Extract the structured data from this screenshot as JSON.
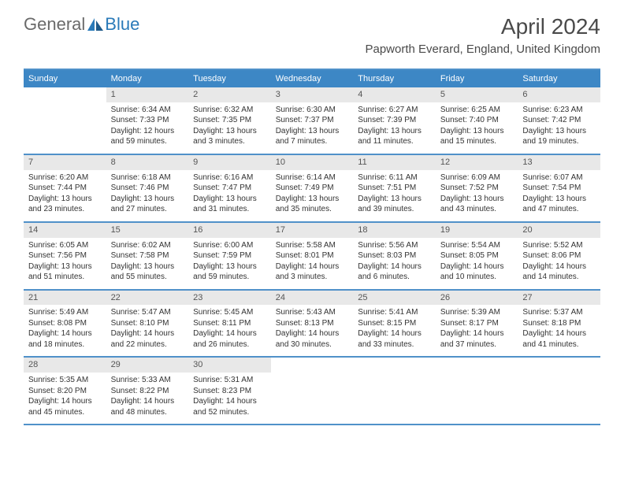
{
  "logo": {
    "text1": "General",
    "text2": "Blue"
  },
  "title": "April 2024",
  "location": "Papworth Everard, England, United Kingdom",
  "colors": {
    "header_bg": "#3d87c5",
    "header_border": "#5091c9",
    "daynum_bg": "#e8e8e8",
    "text": "#333333",
    "logo_gray": "#6a6a6a",
    "logo_blue": "#2a7ab9"
  },
  "day_names": [
    "Sunday",
    "Monday",
    "Tuesday",
    "Wednesday",
    "Thursday",
    "Friday",
    "Saturday"
  ],
  "weeks": [
    [
      {
        "n": "",
        "s": "",
        "t": "",
        "d": ""
      },
      {
        "n": "1",
        "s": "Sunrise: 6:34 AM",
        "t": "Sunset: 7:33 PM",
        "d": "Daylight: 12 hours and 59 minutes."
      },
      {
        "n": "2",
        "s": "Sunrise: 6:32 AM",
        "t": "Sunset: 7:35 PM",
        "d": "Daylight: 13 hours and 3 minutes."
      },
      {
        "n": "3",
        "s": "Sunrise: 6:30 AM",
        "t": "Sunset: 7:37 PM",
        "d": "Daylight: 13 hours and 7 minutes."
      },
      {
        "n": "4",
        "s": "Sunrise: 6:27 AM",
        "t": "Sunset: 7:39 PM",
        "d": "Daylight: 13 hours and 11 minutes."
      },
      {
        "n": "5",
        "s": "Sunrise: 6:25 AM",
        "t": "Sunset: 7:40 PM",
        "d": "Daylight: 13 hours and 15 minutes."
      },
      {
        "n": "6",
        "s": "Sunrise: 6:23 AM",
        "t": "Sunset: 7:42 PM",
        "d": "Daylight: 13 hours and 19 minutes."
      }
    ],
    [
      {
        "n": "7",
        "s": "Sunrise: 6:20 AM",
        "t": "Sunset: 7:44 PM",
        "d": "Daylight: 13 hours and 23 minutes."
      },
      {
        "n": "8",
        "s": "Sunrise: 6:18 AM",
        "t": "Sunset: 7:46 PM",
        "d": "Daylight: 13 hours and 27 minutes."
      },
      {
        "n": "9",
        "s": "Sunrise: 6:16 AM",
        "t": "Sunset: 7:47 PM",
        "d": "Daylight: 13 hours and 31 minutes."
      },
      {
        "n": "10",
        "s": "Sunrise: 6:14 AM",
        "t": "Sunset: 7:49 PM",
        "d": "Daylight: 13 hours and 35 minutes."
      },
      {
        "n": "11",
        "s": "Sunrise: 6:11 AM",
        "t": "Sunset: 7:51 PM",
        "d": "Daylight: 13 hours and 39 minutes."
      },
      {
        "n": "12",
        "s": "Sunrise: 6:09 AM",
        "t": "Sunset: 7:52 PM",
        "d": "Daylight: 13 hours and 43 minutes."
      },
      {
        "n": "13",
        "s": "Sunrise: 6:07 AM",
        "t": "Sunset: 7:54 PM",
        "d": "Daylight: 13 hours and 47 minutes."
      }
    ],
    [
      {
        "n": "14",
        "s": "Sunrise: 6:05 AM",
        "t": "Sunset: 7:56 PM",
        "d": "Daylight: 13 hours and 51 minutes."
      },
      {
        "n": "15",
        "s": "Sunrise: 6:02 AM",
        "t": "Sunset: 7:58 PM",
        "d": "Daylight: 13 hours and 55 minutes."
      },
      {
        "n": "16",
        "s": "Sunrise: 6:00 AM",
        "t": "Sunset: 7:59 PM",
        "d": "Daylight: 13 hours and 59 minutes."
      },
      {
        "n": "17",
        "s": "Sunrise: 5:58 AM",
        "t": "Sunset: 8:01 PM",
        "d": "Daylight: 14 hours and 3 minutes."
      },
      {
        "n": "18",
        "s": "Sunrise: 5:56 AM",
        "t": "Sunset: 8:03 PM",
        "d": "Daylight: 14 hours and 6 minutes."
      },
      {
        "n": "19",
        "s": "Sunrise: 5:54 AM",
        "t": "Sunset: 8:05 PM",
        "d": "Daylight: 14 hours and 10 minutes."
      },
      {
        "n": "20",
        "s": "Sunrise: 5:52 AM",
        "t": "Sunset: 8:06 PM",
        "d": "Daylight: 14 hours and 14 minutes."
      }
    ],
    [
      {
        "n": "21",
        "s": "Sunrise: 5:49 AM",
        "t": "Sunset: 8:08 PM",
        "d": "Daylight: 14 hours and 18 minutes."
      },
      {
        "n": "22",
        "s": "Sunrise: 5:47 AM",
        "t": "Sunset: 8:10 PM",
        "d": "Daylight: 14 hours and 22 minutes."
      },
      {
        "n": "23",
        "s": "Sunrise: 5:45 AM",
        "t": "Sunset: 8:11 PM",
        "d": "Daylight: 14 hours and 26 minutes."
      },
      {
        "n": "24",
        "s": "Sunrise: 5:43 AM",
        "t": "Sunset: 8:13 PM",
        "d": "Daylight: 14 hours and 30 minutes."
      },
      {
        "n": "25",
        "s": "Sunrise: 5:41 AM",
        "t": "Sunset: 8:15 PM",
        "d": "Daylight: 14 hours and 33 minutes."
      },
      {
        "n": "26",
        "s": "Sunrise: 5:39 AM",
        "t": "Sunset: 8:17 PM",
        "d": "Daylight: 14 hours and 37 minutes."
      },
      {
        "n": "27",
        "s": "Sunrise: 5:37 AM",
        "t": "Sunset: 8:18 PM",
        "d": "Daylight: 14 hours and 41 minutes."
      }
    ],
    [
      {
        "n": "28",
        "s": "Sunrise: 5:35 AM",
        "t": "Sunset: 8:20 PM",
        "d": "Daylight: 14 hours and 45 minutes."
      },
      {
        "n": "29",
        "s": "Sunrise: 5:33 AM",
        "t": "Sunset: 8:22 PM",
        "d": "Daylight: 14 hours and 48 minutes."
      },
      {
        "n": "30",
        "s": "Sunrise: 5:31 AM",
        "t": "Sunset: 8:23 PM",
        "d": "Daylight: 14 hours and 52 minutes."
      },
      {
        "n": "",
        "s": "",
        "t": "",
        "d": ""
      },
      {
        "n": "",
        "s": "",
        "t": "",
        "d": ""
      },
      {
        "n": "",
        "s": "",
        "t": "",
        "d": ""
      },
      {
        "n": "",
        "s": "",
        "t": "",
        "d": ""
      }
    ]
  ]
}
